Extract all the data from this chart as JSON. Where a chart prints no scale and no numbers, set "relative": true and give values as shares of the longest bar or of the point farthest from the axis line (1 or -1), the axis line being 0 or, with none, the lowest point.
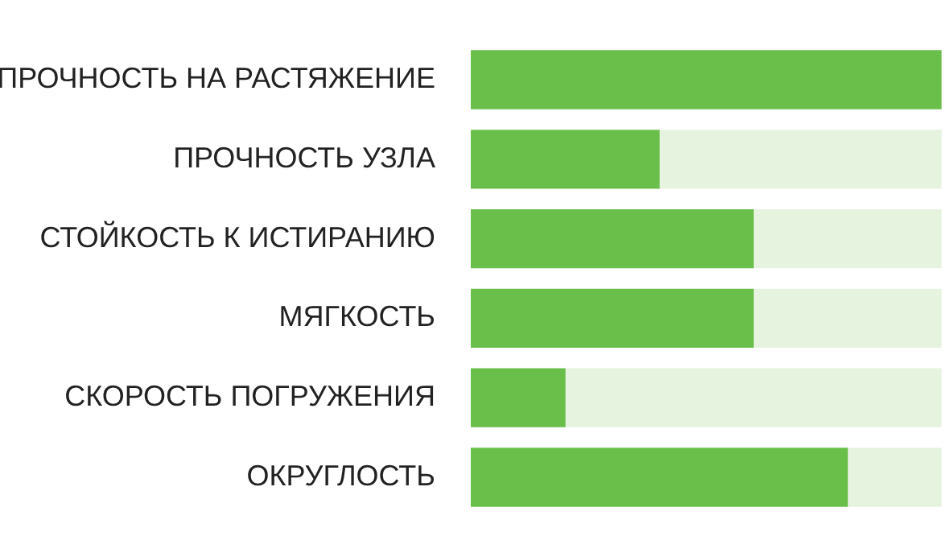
{
  "chart_data": {
    "type": "bar",
    "orientation": "horizontal",
    "stacked": true,
    "relative": true,
    "categories": [
      "ПРОЧНОСТЬ НА РАСТЯЖЕНИЕ",
      "ПРОЧНОСТЬ УЗЛА",
      "СТОЙКОСТЬ К ИСТИРАНИЮ",
      "МЯГКОСТЬ",
      "СКОРОСТЬ ПОГРУЖЕНИЯ",
      "ОКРУГЛОСТЬ"
    ],
    "series": [
      {
        "color": "#6abf4b",
        "values": [
          1,
          0.4,
          0.6,
          0.6,
          0.2,
          0.8
        ]
      },
      {
        "color": "#e5f3df",
        "values": [
          0,
          0.6,
          0.4,
          0.4,
          0.8,
          0.2
        ]
      }
    ]
  }
}
